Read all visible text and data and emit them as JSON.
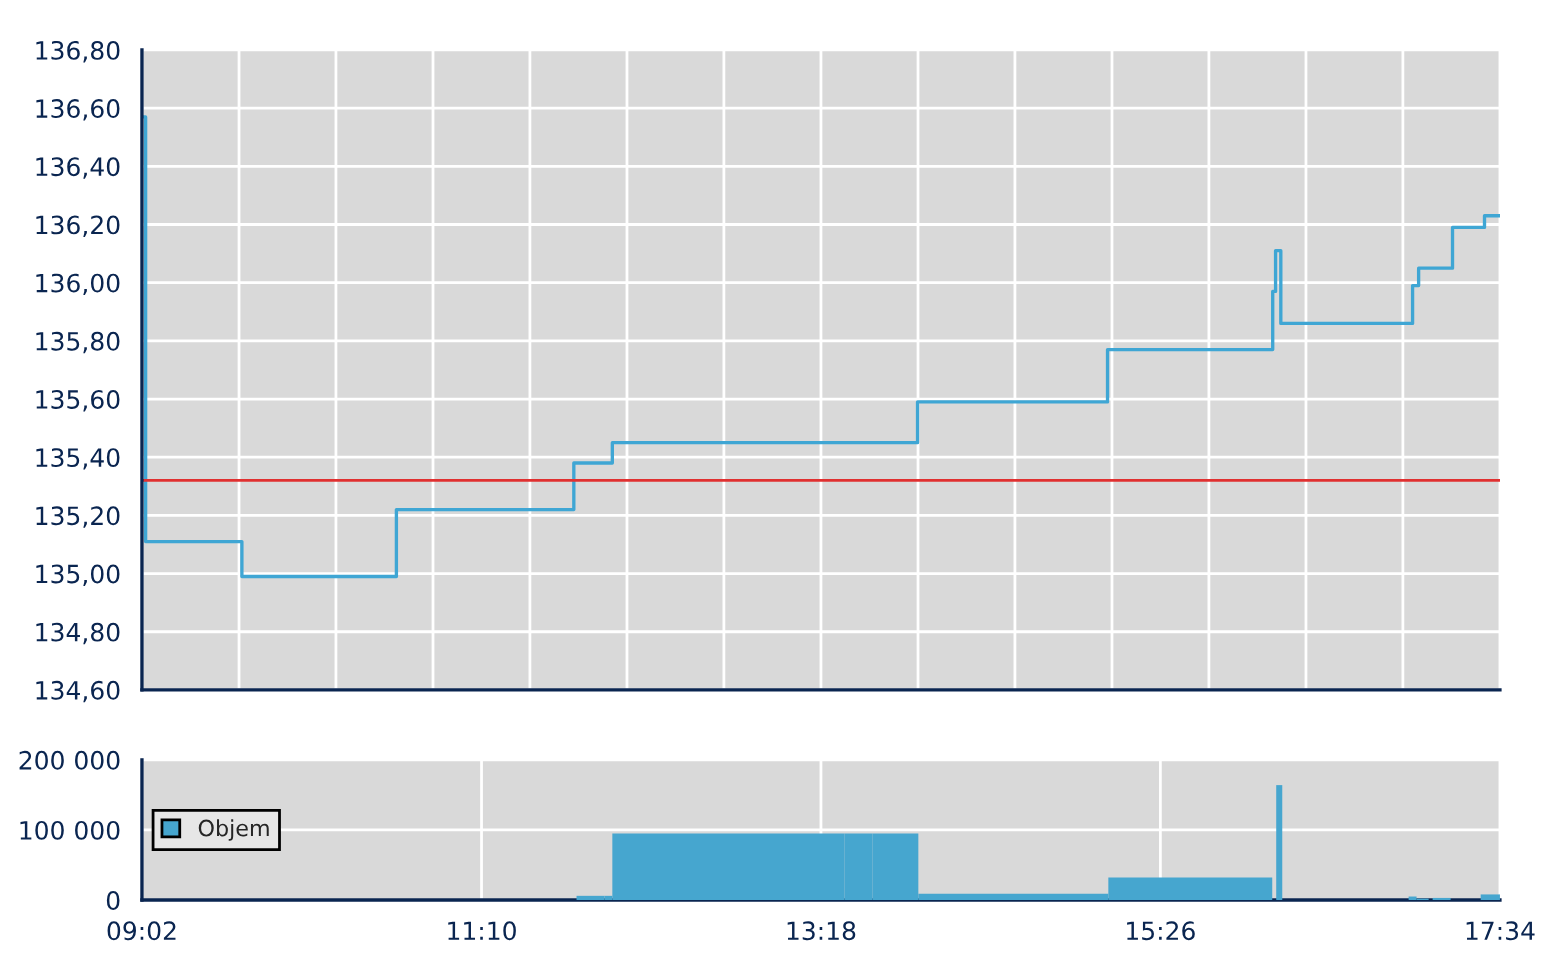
{
  "chart_data": [
    {
      "type": "step",
      "x": [
        9.033,
        9.056,
        9.661,
        10.632,
        11.747,
        11.989,
        13.907,
        15.101,
        16.139,
        16.157,
        16.19,
        17.018,
        17.056,
        17.269,
        17.47,
        17.567
      ],
      "series": [
        {
          "color": "#3fa6d4",
          "values": [
            136.57,
            135.11,
            134.99,
            135.22,
            135.38,
            135.45,
            135.59,
            135.77,
            135.97,
            136.11,
            135.86,
            135.99,
            136.05,
            136.19,
            136.23,
            136.23
          ]
        }
      ],
      "xlim": [
        9.033,
        17.567
      ],
      "xticks": [
        {
          "value": 9.033,
          "label": null
        },
        {
          "value": 9.643,
          "label": null
        },
        {
          "value": 10.252,
          "label": null
        },
        {
          "value": 10.862,
          "label": null
        },
        {
          "value": 11.471,
          "label": null
        },
        {
          "value": 12.081,
          "label": null
        },
        {
          "value": 12.69,
          "label": null
        },
        {
          "value": 13.3,
          "label": null
        },
        {
          "value": 13.91,
          "label": null
        },
        {
          "value": 14.519,
          "label": null
        },
        {
          "value": 15.129,
          "label": null
        },
        {
          "value": 15.738,
          "label": null
        },
        {
          "value": 16.348,
          "label": null
        },
        {
          "value": 16.957,
          "label": null
        },
        {
          "value": 17.567,
          "label": null
        }
      ],
      "ylim": [
        134.6,
        136.8
      ],
      "yticks": [
        {
          "value": 134.6,
          "label": "134,60"
        },
        {
          "value": 134.8,
          "label": "134,80"
        },
        {
          "value": 135.0,
          "label": "135,00"
        },
        {
          "value": 135.2,
          "label": "135,20"
        },
        {
          "value": 135.4,
          "label": "135,40"
        },
        {
          "value": 135.6,
          "label": "135,60"
        },
        {
          "value": 135.8,
          "label": "135,80"
        },
        {
          "value": 136.0,
          "label": "136,00"
        },
        {
          "value": 136.2,
          "label": "136,20"
        },
        {
          "value": 136.4,
          "label": "136,40"
        },
        {
          "value": 136.6,
          "label": "136,60"
        },
        {
          "value": 136.8,
          "label": "136,80"
        }
      ],
      "ref_lines": [
        {
          "axis": "y",
          "value": 135.32,
          "color": "#e03030"
        }
      ],
      "grid": true,
      "tick_labels": "y"
    },
    {
      "type": "histogram",
      "bins": [
        11.764,
        11.94,
        11.989,
        13.447,
        13.623,
        13.912,
        15.106,
        16.136,
        16.161,
        16.199,
        16.993,
        17.043,
        17.119,
        17.144,
        17.257,
        17.446,
        17.567
      ],
      "series": [
        {
          "name": "Objem",
          "color": "#46a6cf",
          "values": [
            6000,
            6000,
            95000,
            95000,
            95000,
            9000,
            32000,
            0,
            164000,
            0,
            5000,
            2000,
            0,
            3000,
            0,
            8000
          ]
        }
      ],
      "xlim": [
        9.033,
        17.567
      ],
      "xticks": [
        {
          "value": 9.033,
          "label": "09:02"
        },
        {
          "value": 11.167,
          "label": "11:10"
        },
        {
          "value": 13.3,
          "label": "13:18"
        },
        {
          "value": 15.433,
          "label": "15:26"
        },
        {
          "value": 17.567,
          "label": "17:34"
        }
      ],
      "ylim": [
        0,
        200000
      ],
      "yticks": [
        {
          "value": 0,
          "label": "0"
        },
        {
          "value": 100000,
          "label": "100 000"
        },
        {
          "value": 200000,
          "label": "200 000"
        }
      ],
      "grid": true,
      "legend": "left"
    }
  ]
}
